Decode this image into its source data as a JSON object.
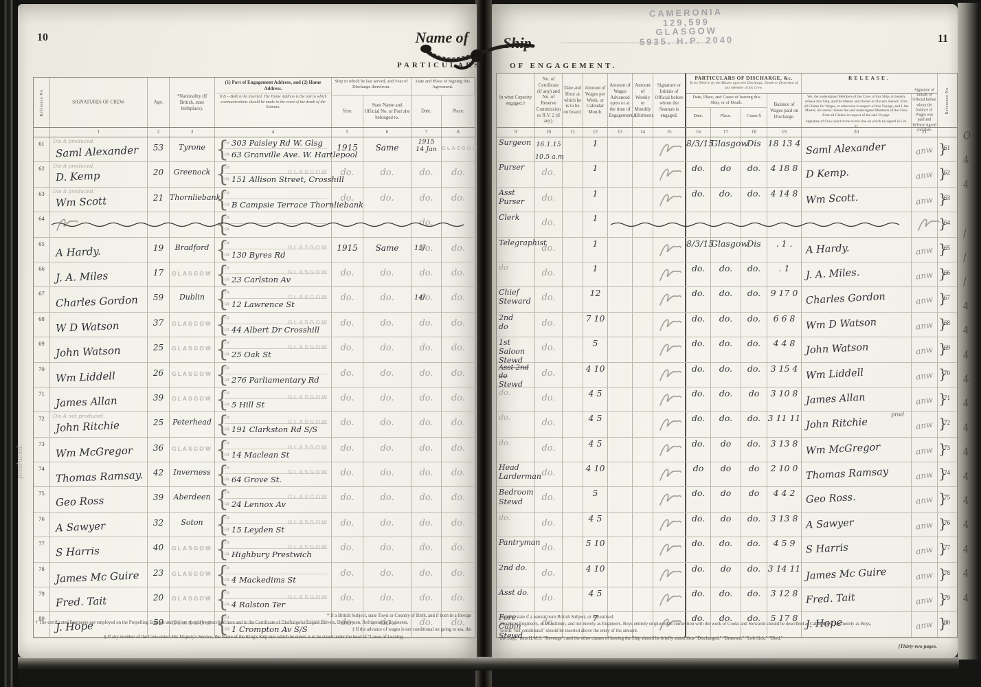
{
  "meta": {
    "left_page_number": "10",
    "right_page_number": "11",
    "title_left": "Name of",
    "title_right": "Ship",
    "section_left": "PARTICULARS",
    "section_right": "OF ENGAGEMENT.",
    "pages_note": "[Thirty-two pages.",
    "left_margin_note": "produced."
  },
  "stamp": {
    "line1": "CAMERONIA",
    "line2": "129,599",
    "line3": "GLASGOW",
    "line4": "5935. H.P. 2040"
  },
  "colors": {
    "page": "#f0eee5",
    "ink": "#2f2f38",
    "faded_ink": "#a3a098",
    "stamp_grey": "#b7b4ad",
    "print": "#45433c"
  },
  "left_table": {
    "ref_header": "Reference No.",
    "headers": {
      "signatures": "SIGNATURES  OF  CREW.",
      "age": "Age.",
      "nationality": "*Nationality (If British, state birthplace).",
      "address_title": "(1) Port of Engagement Address, and (2) Home Address.",
      "address_note": "N.B.—Both to be inserted.  The Home Address is the one to which communications should be made in the event of the death of the Seaman.",
      "ship_group": "Ship in which he last served, and Year of Discharge therefrom.",
      "year": "Year.",
      "ship_name": "State Name and Official No. or Port she belonged to.",
      "signing_group": "Date and Place of Signing this Agreement.",
      "date": "Date.",
      "place": "Place."
    },
    "col_numbers": [
      "1",
      "2",
      "3",
      "4",
      "5",
      "6",
      "7",
      "8"
    ],
    "rows": [
      {
        "no": "61",
        "note": "Dis A produced.",
        "sig": "Saml Alexander",
        "age": "53",
        "nat": "Tyrone",
        "addr1": "303 Paisley Rd W. Glsg",
        "addr2": "63 Granville Ave. W. Hartlepool",
        "year": "1915",
        "ship": "Same",
        "date": "1915\n14 Jan",
        "place": "GLASGOW",
        "place_stamp": true
      },
      {
        "no": "62",
        "note": "Dis A produced.",
        "sig": "D. Kemp",
        "age": "20",
        "nat": "Greenock",
        "addr2": "151 Allison Street, Crosshill",
        "addr_stamp": true,
        "year": "do.",
        "ship": "do.",
        "date": "do.",
        "place": "do."
      },
      {
        "no": "63",
        "note": "Dis A produced.",
        "sig": "Wm Scott",
        "age": "21",
        "nat": "Thornliebank",
        "addr2": "B Campsie Terrace Thornliebank",
        "year": "do.",
        "ship": "do.",
        "date": "do.",
        "place": "do."
      },
      {
        "no": "64",
        "struck": true,
        "scribble": true,
        "date": "do."
      },
      {
        "no": "65",
        "sig": "A Hardy.",
        "age": "19",
        "nat": "Bradford",
        "addr2": "130 Byres Rd",
        "addr_stamp": true,
        "year": "1915",
        "ship": "Same",
        "date": "do.",
        "date_note": "15/",
        "place": "do."
      },
      {
        "no": "66",
        "sig": "J. A. Miles",
        "age": "17",
        "nat": "GLASGOW",
        "nat_stamp": true,
        "addr2": "23 Carlston Av",
        "addr_stamp": true,
        "year": "do.",
        "ship": "do.",
        "date": "do.",
        "place": "do."
      },
      {
        "no": "67",
        "sig": "Charles Gordon",
        "age": "59",
        "nat": "Dublin",
        "addr2": "12 Lawrence St",
        "addr_stamp": true,
        "year": "do.",
        "ship": "do.",
        "date": "do.",
        "date_note": "14/",
        "place": "do."
      },
      {
        "no": "68",
        "sig": "W D Watson",
        "age": "37",
        "nat": "GLASGOW",
        "nat_stamp": true,
        "addr2": "44 Albert Dr Crosshill",
        "addr_stamp": true,
        "year": "do.",
        "ship": "do.",
        "date": "do.",
        "place": "do."
      },
      {
        "no": "69",
        "sig": "John Watson",
        "age": "25",
        "nat": "GLASGOW",
        "nat_stamp": true,
        "addr2": "25 Oak St",
        "addr_stamp": true,
        "year": "do.",
        "ship": "do.",
        "date": "do.",
        "place": "do."
      },
      {
        "no": "70",
        "sig": "Wm Liddell",
        "age": "26",
        "nat": "GLASGOW",
        "nat_stamp": true,
        "addr2": "276 Parliamentary Rd",
        "year": "do.",
        "ship": "do.",
        "date": "do.",
        "place": "do."
      },
      {
        "no": "71",
        "sig": "James Allan",
        "age": "39",
        "nat": "GLASGOW",
        "nat_stamp": true,
        "addr2": "5 Hill St",
        "addr_stamp": true,
        "year": "do.",
        "ship": "do.",
        "date": "do.",
        "place": "do."
      },
      {
        "no": "72",
        "note": "Dis A not produced.",
        "sig": "John Ritchie",
        "age": "25",
        "nat": "Peterhead",
        "addr2": "191 Clarkston Rd S/S",
        "addr_stamp": true,
        "year": "do.",
        "ship": "do.",
        "date": "do.",
        "place": "do."
      },
      {
        "no": "73",
        "sig": "Wm McGregor",
        "age": "36",
        "nat": "GLASGOW",
        "nat_stamp": true,
        "addr2": "14 Maclean St",
        "addr_stamp": true,
        "year": "do.",
        "ship": "do.",
        "date": "do.",
        "place": "do."
      },
      {
        "no": "74",
        "sig": "Thomas Ramsay.",
        "age": "42",
        "nat": "Inverness",
        "addr2": "64 Grove St.",
        "addr_stamp": true,
        "year": "do.",
        "ship": "do.",
        "date": "do.",
        "place": "do."
      },
      {
        "no": "75",
        "sig": "Geo Ross",
        "age": "39",
        "nat": "Aberdeen",
        "addr2": "24 Lennox Av",
        "addr_stamp": true,
        "year": "do.",
        "ship": "do.",
        "date": "do.",
        "place": "do."
      },
      {
        "no": "76",
        "sig": "A Sawyer",
        "age": "32",
        "nat": "Soton",
        "addr2": "15 Leyden St",
        "addr_stamp": true,
        "year": "do.",
        "ship": "do.",
        "date": "do.",
        "place": "do."
      },
      {
        "no": "77",
        "sig": "S Harris",
        "age": "40",
        "nat": "GLASGOW",
        "nat_stamp": true,
        "addr2": "Highbury Prestwich",
        "addr_stamp": true,
        "year": "do.",
        "ship": "do.",
        "date": "do.",
        "place": "do."
      },
      {
        "no": "78",
        "sig": "James Mc Guire",
        "age": "23",
        "nat": "GLASGOW",
        "nat_stamp": true,
        "addr2": "4 Mackedims St",
        "year": "do.",
        "ship": "do.",
        "date": "do.",
        "place": "do."
      },
      {
        "no": "79",
        "sig": "Fred. Tait",
        "age": "20",
        "nat": "GLASGOW",
        "nat_stamp": true,
        "addr2": "4 Ralston Ter",
        "addr_stamp": true,
        "year": "do.",
        "ship": "do.",
        "date": "do.",
        "place": "do."
      },
      {
        "no": "80",
        "sig": "J. Hope",
        "age": "50",
        "nat": "GLASGOW",
        "nat_stamp": true,
        "addr2": "1 Crompton Av S/S",
        "addr_stamp": true,
        "year": "do.",
        "ship": "do.",
        "date": "do.",
        "place": "do."
      }
    ]
  },
  "right_table": {
    "headers": {
      "discharge_group_title": "PARTICULARS OF DISCHARGE, &c.",
      "discharge_group_note": "To be filled in by the Master upon the Discharge, Death or Desertion of any Member of his Crew.",
      "release_group": "RELEASE.",
      "capacity": "In what Capacity engaged.†",
      "certificate": "No. of Certificate (if any) and No. of Reserve Commission or R.V. 2 (if any).",
      "hour": "Date and Hour at which he is to be on board.",
      "wages": "Amount of Wages per Week, or Calendar Month.",
      "advance": "Amount of Wages Advanced upon or at the time of Engagement.‡",
      "allotment": "Amount of Weekly or Monthly Allotment.",
      "official": "Signature or Initials of Official before whom the Seaman is engaged.",
      "leaving_group": "Date, Place, and Cause of leaving this Ship, or of Death.",
      "date": "Date.",
      "place": "Place.",
      "cause": "Cause.§",
      "balance": "Balance of Wages paid on Discharge.",
      "release_text": "We, the undersigned Members of the Crew of this Ship, do hereby release this Ship, and the Master and Owner or Owners thereof, from all Claims for Wages, or otherwise in respect of this Voyage, and I, the Master, do hereby release the said undersigned Members of the Crew from all Claims in respect of the said Voyage.",
      "release_sig_note": "Signature of Crew (each to be on the line on which he signed in Col. 1).",
      "paid_official": "Signature of Initials of Official before whom the balance of Wages was paid and Release signed and Date.",
      "ref": "Reference No."
    },
    "col_numbers": [
      "9",
      "10",
      "11",
      "12",
      "13",
      "14",
      "15",
      "16",
      "17",
      "18",
      "19",
      "20",
      "21"
    ],
    "official_initials": "anw",
    "rows": [
      {
        "no": "61",
        "cap": "Surgeon",
        "cert": "16.1.15\n10.5 a.m",
        "wages": "1",
        "date": "8/3/15",
        "place": "Glasgow",
        "cause": "Dis",
        "bal": "18 13 4",
        "rsig": "Saml Alexander",
        "off": "anw",
        "margin": "O"
      },
      {
        "no": "62",
        "cap": "Purser",
        "cert": "do.",
        "wages": "1",
        "date": "do.",
        "place": "do",
        "cause": "do.",
        "bal": "4 18 8",
        "rsig": "D Kemp.",
        "off": "anw",
        "margin": "4"
      },
      {
        "no": "63",
        "cap": "Asst\nPurser",
        "cert": "do.",
        "wages": "1",
        "date": "do.",
        "place": "do.",
        "cause": "do.",
        "bal": "4 14 8",
        "rsig": "Wm Scott.",
        "off": "anw",
        "margin": "4"
      },
      {
        "no": "64",
        "cap": "Clerk",
        "cert": "do.",
        "wages": "1",
        "struck": true
      },
      {
        "no": "65",
        "cap": "Telegraphist",
        "cert": "do.",
        "wages": "1",
        "date": "8/3/15",
        "place": "Glasgow",
        "cause": "Dis",
        "bal": ". 1 .",
        "rsig": "A Hardy.",
        "off": "anw",
        "margin": "/"
      },
      {
        "no": "66",
        "cap": "do",
        "cert": "do.",
        "wages": "1",
        "date": "do.",
        "place": "do.",
        "cause": "do.",
        "bal": ". 1",
        "rsig": "J. A. Miles.",
        "off": "anw",
        "margin": "/"
      },
      {
        "no": "67",
        "cap": "Chief\nSteward",
        "cert": "do.",
        "wages": "12",
        "date": "do.",
        "place": "do.",
        "cause": "do.",
        "bal": "9 17 0",
        "rsig": "Charles Gordon",
        "off": "anw",
        "margin": "/"
      },
      {
        "no": "68",
        "cap": "2nd\ndo",
        "cert": "do.",
        "wages": "7 10",
        "date": "do.",
        "place": "do.",
        "cause": "do.",
        "bal": "6 6 8",
        "rsig": "Wm D Watson",
        "off": "anw",
        "margin": "4"
      },
      {
        "no": "69",
        "cap": "1st Saloon\nStewd",
        "cert": "do.",
        "wages": "5",
        "date": "do.",
        "place": "do.",
        "cause": "do.",
        "bal": "4 4 8",
        "rsig": "John Watson",
        "off": "anw",
        "margin": "4"
      },
      {
        "no": "70",
        "cap_struck": "Asst 2nd do",
        "cap": "Stewd",
        "cert": "do.",
        "wages": "4 10",
        "date": "do.",
        "place": "do.",
        "cause": "do.",
        "bal": "3 15 4",
        "rsig": "Wm Liddell",
        "off": "anw",
        "margin": "4"
      },
      {
        "no": "71",
        "cap": "do.",
        "cert": "do.",
        "wages": "4 5",
        "date": "do.",
        "place": "do.",
        "cause": "do",
        "bal": "3 10 8",
        "rsig": "James Allan",
        "off": "anw",
        "margin": "4"
      },
      {
        "no": "72",
        "cap": "do.",
        "cert": "do.",
        "wages": "4 5",
        "date": "do.",
        "place": "do.",
        "cause": "do.",
        "bal": "3 11 11",
        "rsig": "John Ritchie",
        "rsig_note": "prod",
        "off": "anw",
        "margin": "4"
      },
      {
        "no": "73",
        "cap": "do.",
        "cert": "do.",
        "wages": "4 5",
        "date": "do.",
        "place": "do",
        "cause": "do.",
        "bal": "3 13 8",
        "rsig": "Wm McGregor",
        "off": "anw",
        "margin": "4"
      },
      {
        "no": "74",
        "cap": "Head\nLarderman",
        "cert": "do.",
        "wages": "4 10",
        "date": "do",
        "place": "do",
        "cause": "do",
        "bal": "2 10 0",
        "rsig": "Thomas Ramsay",
        "off": "anw",
        "margin": "4"
      },
      {
        "no": "75",
        "cap": "Bedroom\nStewd",
        "cert": "do.",
        "wages": "5",
        "date": "do.",
        "place": "do",
        "cause": "do",
        "bal": "4 4 2",
        "rsig": "Geo Ross.",
        "off": "anw",
        "margin": "4"
      },
      {
        "no": "76",
        "cap": "do.",
        "cert": "do.",
        "wages": "4 5",
        "date": "do.",
        "place": "do",
        "cause": "do.",
        "bal": "3 13 8",
        "rsig": "A Sawyer",
        "off": "anw",
        "margin": "4"
      },
      {
        "no": "77",
        "cap": "Pantryman",
        "cert": "do.",
        "wages": "5 10",
        "date": "do.",
        "place": "do.",
        "cause": "do.",
        "bal": "4 5 9",
        "rsig": "S Harris",
        "off": "anw",
        "margin": "4"
      },
      {
        "no": "78",
        "cap": "2nd do.",
        "cert": "do.",
        "wages": "4 10",
        "date": "do.",
        "place": "do",
        "cause": "do.",
        "bal": "3 14 11",
        "rsig": "James Mc Guire",
        "off": "anw",
        "margin": "4"
      },
      {
        "no": "79",
        "cap": "Asst do.",
        "cert": "do.",
        "wages": "4 5",
        "date": "do.",
        "place": "do.",
        "cause": "do.",
        "bal": "3 12 8",
        "rsig": "Fred. Tait",
        "off": "anw",
        "margin": "4"
      },
      {
        "no": "80",
        "cap": "Fore Cabin\nStewd",
        "cert": "do.",
        "wages": "7",
        "date": "do.",
        "place": "do.",
        "cause": "do.",
        "bal": "5 17 8",
        "rsig": "J. Hope",
        "off": "anw",
        "margin": "4"
      }
    ]
  },
  "footnotes_left": [
    {
      "text": "* If a British Subject, state Town or Country of Birth, and if born in a foreign",
      "align": "right"
    },
    {
      "text": "† The certificated Engineers not employed on the Propelling Engines and Boilers should be described here and in the Certificate of Discharge as Engine Drivers, Donkeymen, Refrigerating Engineers,",
      "align": "left"
    },
    {
      "text": "‡ If the advance of wages is not conditional on going to sea, the",
      "align": "right"
    },
    {
      "text": "§ If any member of the Crew enters His Majesty's Service, the Name of the King's Ship into which he enters is to be stated under the head of \"Cause of Leaving",
      "align": "center"
    }
  ],
  "footnotes_right": [
    {
      "text": "country, state if a natural born British Subject, or naturalised.",
      "align": "left"
    },
    {
      "text": "Electrical Engineers, or Winchmen, and not merely as Engineers.   Boys entirely employed in connection with the work of Cooks and Stewards should be described as Cabin Boys, not merely as Boys,",
      "align": "left"
    },
    {
      "text": "words \"not conditional\" should be inserted above the entry of the amount.",
      "align": "left"
    },
    {
      "text": "the Ship,\" thus H.M.S. \"Revenge\"; and the other causes of leaving the Ship should be briefly stated thus \"Discharged,\" \"Deserted,\" \"Left Sick,\" \"Died.\"",
      "align": "left"
    }
  ]
}
